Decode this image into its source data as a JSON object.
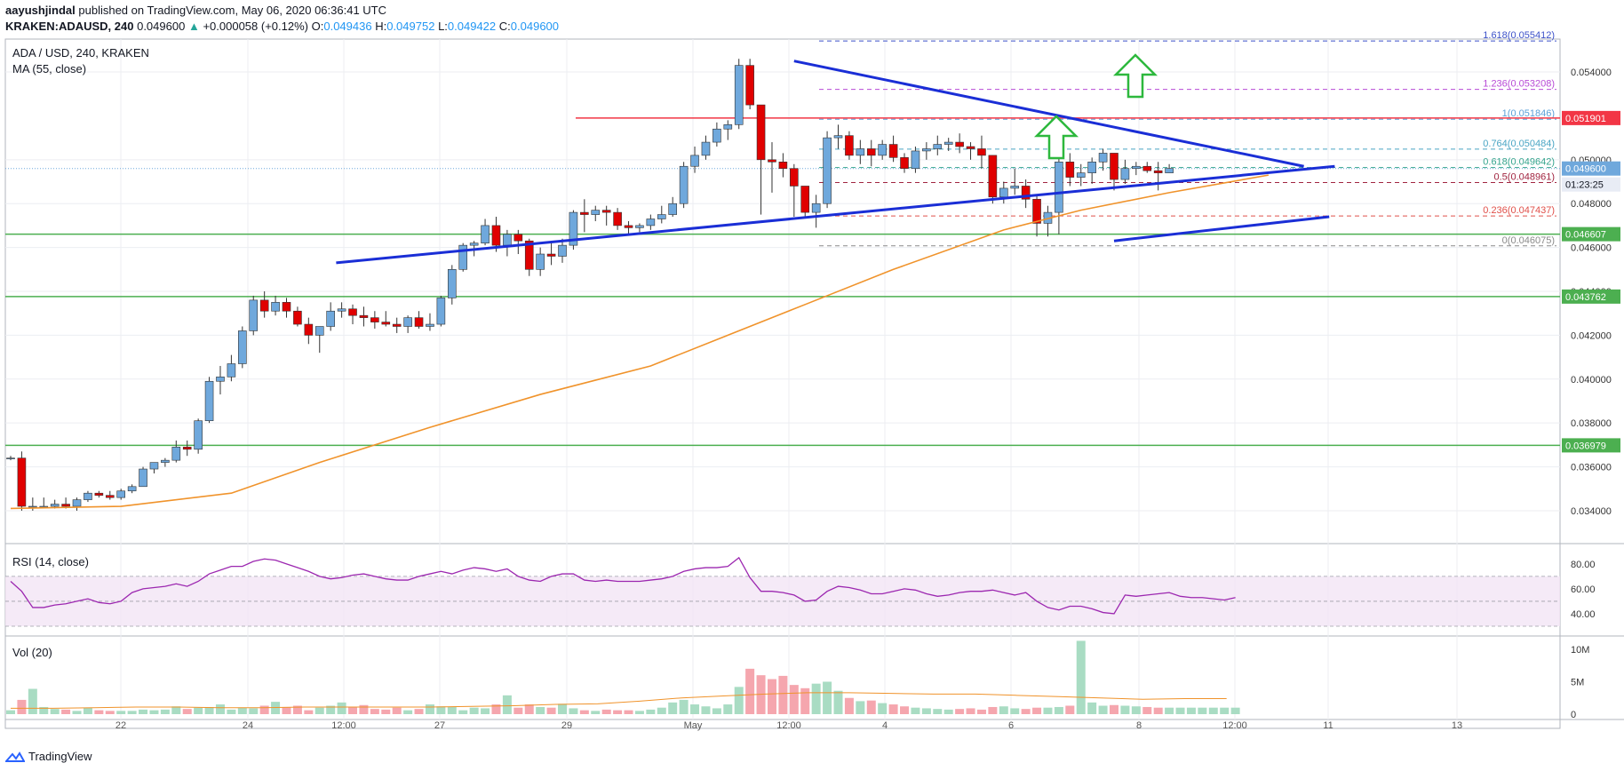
{
  "header": {
    "publisher": "aayushjindal",
    "published_text": "published on TradingView.com, May 06, 2020 06:36:41 UTC",
    "symbol": "KRAKEN:ADAUSD, 240",
    "last": "0.049600",
    "change": "+0.000058 (+0.12%)",
    "o_label": "O:",
    "o": "0.049436",
    "h_label": "H:",
    "h": "0.049752",
    "l_label": "L:",
    "l": "0.049422",
    "c_label": "C:",
    "c": "0.049600"
  },
  "legend": {
    "main_title": "ADA / USD, 240, KRAKEN",
    "ma_label": "MA (55, close)",
    "rsi_label": "RSI (14, close)",
    "vol_label": "Vol (20)"
  },
  "footer": {
    "brand": "TradingView"
  },
  "colors": {
    "up": "#6fa8dc",
    "down": "#e00000",
    "ma": "#f0932b",
    "trend": "#1a2ed6",
    "support": "#4caf50",
    "resistance": "#f23645",
    "rsi": "#9c27b0",
    "arrow": "#2db83d"
  },
  "chart_data": [
    {
      "type": "candlestick",
      "title": "ADA / USD, 240, KRAKEN",
      "x_ticks": [
        "22",
        "24",
        "12:00",
        "27",
        "29",
        "May",
        "12:00",
        "4",
        "6",
        "8",
        "12:00",
        "11",
        "13"
      ],
      "y_ticks": [
        "0.034000",
        "0.036000",
        "0.038000",
        "0.040000",
        "0.042000",
        "0.044000",
        "0.046000",
        "0.048000",
        "0.050000",
        "0.054000"
      ],
      "ylim": [
        0.0325,
        0.0555
      ],
      "price_labels": [
        {
          "label": "0.051901",
          "value": 0.051901,
          "kind": "resistance"
        },
        {
          "label": "0.049600",
          "value": 0.0496,
          "kind": "last"
        },
        {
          "label": "01:23:25",
          "value": 0.0492,
          "kind": "timer"
        },
        {
          "label": "0.046607",
          "value": 0.046607,
          "kind": "support"
        },
        {
          "label": "0.043762",
          "value": 0.043762,
          "kind": "support"
        },
        {
          "label": "0.036979",
          "value": 0.036979,
          "kind": "support"
        }
      ],
      "fib_levels": [
        {
          "label": "1.618(0.055412)",
          "value": 0.055412
        },
        {
          "label": "1.236(0.053208)",
          "value": 0.053208
        },
        {
          "label": "1(0.051846)",
          "value": 0.051846
        },
        {
          "label": "0.764(0.050484)",
          "value": 0.050484
        },
        {
          "label": "0.618(0.049642)",
          "value": 0.049642
        },
        {
          "label": "0.5(0.048961)",
          "value": 0.048961
        },
        {
          "label": "0.236(0.047437)",
          "value": 0.047437
        },
        {
          "label": "0(0.046075)",
          "value": 0.046075
        }
      ],
      "trend_lines": [
        {
          "from": [
            29.5,
            0.0453
          ],
          "to": [
            120.0,
            0.0497
          ]
        },
        {
          "from": [
            71.0,
            0.0545
          ],
          "to": [
            117.2,
            0.0497
          ]
        },
        {
          "from": [
            100.0,
            0.0463
          ],
          "to": [
            119.5,
            0.0474
          ]
        }
      ],
      "ma_55": [
        [
          0,
          0.0341
        ],
        [
          10,
          0.0342
        ],
        [
          20,
          0.0348
        ],
        [
          28,
          0.0362
        ],
        [
          38,
          0.0378
        ],
        [
          48,
          0.0393
        ],
        [
          58,
          0.0406
        ],
        [
          65,
          0.042
        ],
        [
          72,
          0.0434
        ],
        [
          80,
          0.045
        ],
        [
          90,
          0.0468
        ],
        [
          97,
          0.0477
        ],
        [
          105,
          0.0485
        ],
        [
          114,
          0.0493
        ]
      ],
      "candles": [
        [
          0.0364,
          0.0365,
          0.0363,
          0.0364
        ],
        [
          0.0364,
          0.0367,
          0.034,
          0.0342
        ],
        [
          0.0342,
          0.0346,
          0.034,
          0.0342
        ],
        [
          0.0342,
          0.0346,
          0.0341,
          0.0342
        ],
        [
          0.0342,
          0.0345,
          0.0341,
          0.0343
        ],
        [
          0.0343,
          0.0346,
          0.0341,
          0.0342
        ],
        [
          0.0342,
          0.0346,
          0.034,
          0.0345
        ],
        [
          0.0345,
          0.0349,
          0.0344,
          0.0348
        ],
        [
          0.0348,
          0.0349,
          0.0346,
          0.0347
        ],
        [
          0.0347,
          0.0349,
          0.0345,
          0.0346
        ],
        [
          0.0346,
          0.035,
          0.0345,
          0.0349
        ],
        [
          0.0349,
          0.0352,
          0.0348,
          0.0351
        ],
        [
          0.0351,
          0.036,
          0.0351,
          0.0359
        ],
        [
          0.0359,
          0.0362,
          0.0357,
          0.0362
        ],
        [
          0.0362,
          0.0364,
          0.036,
          0.0363
        ],
        [
          0.0363,
          0.0372,
          0.0362,
          0.0369
        ],
        [
          0.0369,
          0.0372,
          0.0365,
          0.0368
        ],
        [
          0.0368,
          0.0382,
          0.0366,
          0.0381
        ],
        [
          0.0381,
          0.0401,
          0.038,
          0.0399
        ],
        [
          0.0399,
          0.0406,
          0.0393,
          0.0401
        ],
        [
          0.0401,
          0.0411,
          0.0399,
          0.0407
        ],
        [
          0.0407,
          0.0424,
          0.0405,
          0.0422
        ],
        [
          0.0422,
          0.0438,
          0.042,
          0.0436
        ],
        [
          0.0436,
          0.044,
          0.0428,
          0.0431
        ],
        [
          0.0431,
          0.0438,
          0.0429,
          0.0435
        ],
        [
          0.0435,
          0.0437,
          0.0428,
          0.0431
        ],
        [
          0.0431,
          0.0433,
          0.0424,
          0.0425
        ],
        [
          0.0425,
          0.0428,
          0.0416,
          0.042
        ],
        [
          0.042,
          0.0424,
          0.0412,
          0.0424
        ],
        [
          0.0424,
          0.0435,
          0.0422,
          0.0431
        ],
        [
          0.0431,
          0.0435,
          0.0428,
          0.0432
        ],
        [
          0.0432,
          0.0434,
          0.0425,
          0.0429
        ],
        [
          0.0429,
          0.0433,
          0.0424,
          0.0428
        ],
        [
          0.0428,
          0.0431,
          0.0423,
          0.0426
        ],
        [
          0.0426,
          0.0431,
          0.0424,
          0.0425
        ],
        [
          0.0425,
          0.0428,
          0.0421,
          0.0424
        ],
        [
          0.0424,
          0.0429,
          0.0421,
          0.0428
        ],
        [
          0.0428,
          0.0431,
          0.0423,
          0.0424
        ],
        [
          0.0424,
          0.043,
          0.0422,
          0.0425
        ],
        [
          0.0425,
          0.0438,
          0.0424,
          0.0437
        ],
        [
          0.0437,
          0.0452,
          0.0434,
          0.045
        ],
        [
          0.045,
          0.0462,
          0.0449,
          0.0461
        ],
        [
          0.0461,
          0.0463,
          0.0456,
          0.0462
        ],
        [
          0.0462,
          0.0473,
          0.0461,
          0.047
        ],
        [
          0.047,
          0.0474,
          0.0458,
          0.0461
        ],
        [
          0.0461,
          0.0468,
          0.0456,
          0.0466
        ],
        [
          0.0466,
          0.0468,
          0.0457,
          0.0463
        ],
        [
          0.0463,
          0.0464,
          0.0447,
          0.045
        ],
        [
          0.045,
          0.046,
          0.0447,
          0.0457
        ],
        [
          0.0457,
          0.0462,
          0.0452,
          0.0456
        ],
        [
          0.0456,
          0.0464,
          0.0453,
          0.0461
        ],
        [
          0.0461,
          0.0477,
          0.0459,
          0.0476
        ],
        [
          0.0476,
          0.0482,
          0.0467,
          0.0475
        ],
        [
          0.0475,
          0.0479,
          0.0472,
          0.0477
        ],
        [
          0.0477,
          0.0479,
          0.047,
          0.0476
        ],
        [
          0.0476,
          0.0478,
          0.0468,
          0.047
        ],
        [
          0.047,
          0.0472,
          0.0466,
          0.0469
        ],
        [
          0.0469,
          0.0471,
          0.0467,
          0.047
        ],
        [
          0.047,
          0.0475,
          0.0468,
          0.0473
        ],
        [
          0.0473,
          0.0479,
          0.0471,
          0.0475
        ],
        [
          0.0475,
          0.0483,
          0.0474,
          0.048
        ],
        [
          0.048,
          0.0499,
          0.0478,
          0.0497
        ],
        [
          0.0497,
          0.0506,
          0.0494,
          0.0502
        ],
        [
          0.0502,
          0.0511,
          0.05,
          0.0508
        ],
        [
          0.0508,
          0.0517,
          0.0506,
          0.0514
        ],
        [
          0.0514,
          0.0518,
          0.0509,
          0.0516
        ],
        [
          0.0516,
          0.0546,
          0.0514,
          0.0543
        ],
        [
          0.0543,
          0.0546,
          0.0523,
          0.0525
        ],
        [
          0.0525,
          0.0525,
          0.0475,
          0.05
        ],
        [
          0.05,
          0.0508,
          0.0485,
          0.0499
        ],
        [
          0.0499,
          0.0503,
          0.0492,
          0.0496
        ],
        [
          0.0496,
          0.0498,
          0.0474,
          0.0488
        ],
        [
          0.0488,
          0.0488,
          0.0474,
          0.0476
        ],
        [
          0.0476,
          0.0484,
          0.0469,
          0.048
        ],
        [
          0.048,
          0.0513,
          0.0478,
          0.051
        ],
        [
          0.051,
          0.0516,
          0.0505,
          0.0511
        ],
        [
          0.0511,
          0.0513,
          0.05,
          0.0502
        ],
        [
          0.0502,
          0.0509,
          0.0498,
          0.0505
        ],
        [
          0.0505,
          0.0509,
          0.0497,
          0.0502
        ],
        [
          0.0502,
          0.0509,
          0.05,
          0.0507
        ],
        [
          0.0507,
          0.0511,
          0.0499,
          0.0501
        ],
        [
          0.0501,
          0.0503,
          0.0494,
          0.0496
        ],
        [
          0.0496,
          0.0506,
          0.0494,
          0.0504
        ],
        [
          0.0504,
          0.0508,
          0.05,
          0.0505
        ],
        [
          0.0505,
          0.0511,
          0.0502,
          0.0507
        ],
        [
          0.0507,
          0.051,
          0.0504,
          0.0508
        ],
        [
          0.0508,
          0.0512,
          0.0503,
          0.0506
        ],
        [
          0.0506,
          0.0508,
          0.05,
          0.0505
        ],
        [
          0.0505,
          0.0511,
          0.0496,
          0.0502
        ],
        [
          0.0502,
          0.0502,
          0.048,
          0.0483
        ],
        [
          0.0483,
          0.049,
          0.048,
          0.0487
        ],
        [
          0.0487,
          0.0496,
          0.0484,
          0.0488
        ],
        [
          0.0488,
          0.0491,
          0.0478,
          0.0482
        ],
        [
          0.0482,
          0.0484,
          0.0465,
          0.0471
        ],
        [
          0.0471,
          0.0479,
          0.0465,
          0.0476
        ],
        [
          0.0476,
          0.0501,
          0.0466,
          0.0499
        ],
        [
          0.0499,
          0.0503,
          0.0488,
          0.0492
        ],
        [
          0.0492,
          0.0498,
          0.0488,
          0.0494
        ],
        [
          0.0494,
          0.0501,
          0.0489,
          0.0499
        ],
        [
          0.0499,
          0.0505,
          0.0495,
          0.0503
        ],
        [
          0.0503,
          0.0503,
          0.0486,
          0.0491
        ],
        [
          0.0491,
          0.05,
          0.0489,
          0.0496
        ],
        [
          0.0496,
          0.0499,
          0.0493,
          0.0497
        ],
        [
          0.0497,
          0.0499,
          0.0494,
          0.0495
        ],
        [
          0.0495,
          0.0499,
          0.0486,
          0.0494
        ],
        [
          0.0494,
          0.0498,
          0.0494,
          0.0496
        ]
      ]
    },
    {
      "type": "line",
      "title": "RSI (14, close)",
      "y_ticks": [
        "40.00",
        "60.00",
        "80.00"
      ],
      "ylim": [
        25,
        92
      ],
      "band": [
        30,
        70
      ],
      "values": [
        66,
        58,
        45,
        45,
        47,
        48,
        50,
        52,
        49,
        48,
        50,
        57,
        60,
        61,
        62,
        64,
        62,
        66,
        72,
        75,
        78,
        78,
        82,
        84,
        83,
        80,
        77,
        74,
        70,
        68,
        69,
        71,
        72,
        70,
        68,
        67,
        67,
        70,
        72,
        74,
        72,
        75,
        77,
        76,
        74,
        76,
        70,
        67,
        66,
        70,
        72,
        72,
        67,
        66,
        67,
        66,
        66,
        66,
        67,
        68,
        70,
        74,
        76,
        77,
        77,
        78,
        85,
        69,
        58,
        58,
        57,
        55,
        50,
        51,
        58,
        62,
        61,
        59,
        56,
        56,
        58,
        60,
        59,
        56,
        54,
        55,
        57,
        58,
        58,
        59,
        57,
        55,
        57,
        50,
        45,
        43,
        46,
        46,
        44,
        41,
        40,
        55,
        54,
        55,
        56,
        57,
        54,
        53,
        53,
        52,
        51,
        53
      ]
    },
    {
      "type": "bar",
      "title": "Vol (20)",
      "y_ticks": [
        "0",
        "5M",
        "10M"
      ],
      "ylim": [
        0,
        11.5
      ],
      "unit": "M",
      "values": [
        0.6,
        2.2,
        3.9,
        1.1,
        0.8,
        0.7,
        0.5,
        1.0,
        0.6,
        0.5,
        0.5,
        0.5,
        0.7,
        0.6,
        0.7,
        1.2,
        0.8,
        1.0,
        1.1,
        1.5,
        0.7,
        1.0,
        0.9,
        1.3,
        1.9,
        1.1,
        1.3,
        0.6,
        1.0,
        1.3,
        1.8,
        1.1,
        1.4,
        0.8,
        0.7,
        1.0,
        0.6,
        0.8,
        1.5,
        1.2,
        1.1,
        0.6,
        1.0,
        0.9,
        1.5,
        2.9,
        1.0,
        1.5,
        1.1,
        1.0,
        1.6,
        0.9,
        0.6,
        0.5,
        0.7,
        0.6,
        0.6,
        0.5,
        0.7,
        1.0,
        1.8,
        2.2,
        1.5,
        1.2,
        0.9,
        1.5,
        4.2,
        7.0,
        6.0,
        5.4,
        5.9,
        4.5,
        4.0,
        4.7,
        5.0,
        3.6,
        2.5,
        2.0,
        2.1,
        1.7,
        1.5,
        1.2,
        1.0,
        0.9,
        0.8,
        0.7,
        0.8,
        0.9,
        0.7,
        1.1,
        1.2,
        0.9,
        0.8,
        1.0,
        1.0,
        1.1,
        1.3,
        11.3,
        1.8,
        1.3,
        1.4,
        1.3,
        1.2,
        1.1,
        1.0,
        1.0,
        1.0,
        1.0,
        1.0,
        1.0,
        1.0,
        1.0
      ],
      "ma_20": [
        0.9,
        0.9,
        1.0,
        1.1,
        1.1,
        1.0,
        1.0,
        1.1,
        1.1,
        1.1,
        1.1,
        1.2,
        1.3,
        1.5,
        1.6,
        2.0,
        2.5,
        2.8,
        3.1,
        3.3,
        3.3,
        3.2,
        3.1,
        3.1,
        2.9,
        2.7,
        2.5,
        2.3,
        2.4,
        2.4
      ]
    }
  ]
}
